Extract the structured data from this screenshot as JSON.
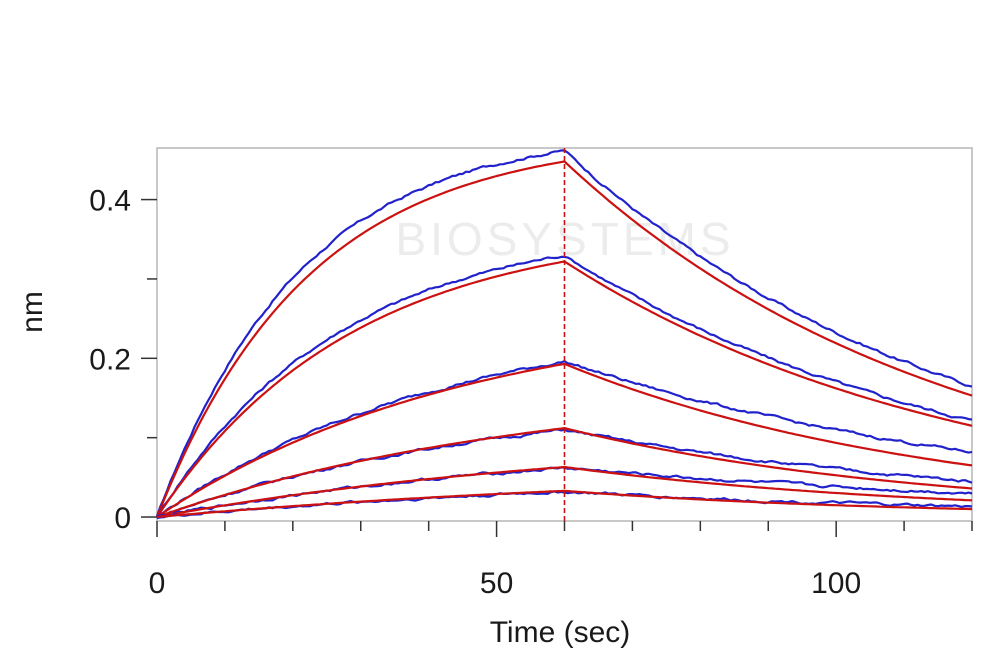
{
  "chart_data": {
    "type": "line",
    "xlabel": "Time (sec)",
    "ylabel": "nm",
    "xlim": [
      0,
      120
    ],
    "ylim": [
      -0.005,
      0.465
    ],
    "x_ticks": [
      0,
      50,
      100
    ],
    "x_tick_labels": [
      "0",
      "50",
      "100"
    ],
    "y_ticks": [
      0,
      0.2,
      0.4
    ],
    "y_tick_labels": [
      "0",
      "0.2",
      "0.4"
    ],
    "x_minor_step": 10,
    "y_minor_step": 0.1,
    "grid": false,
    "dissociation_start": 60,
    "colors": {
      "measured": "#2222cc",
      "fit": "#cc1111",
      "marker_line": "#cc1111",
      "frame": "#b5b5b5",
      "axis": "#333333"
    },
    "watermark": "BIOSYSTEMS",
    "series": [
      {
        "measured": {
          "assoc_end": 0.462,
          "dissoc_end": 0.165
        },
        "fit": {
          "assoc_end": 0.448,
          "dissoc_end": 0.153
        }
      },
      {
        "measured": {
          "assoc_end": 0.33,
          "dissoc_end": 0.122
        },
        "fit": {
          "assoc_end": 0.322,
          "dissoc_end": 0.115
        }
      },
      {
        "measured": {
          "assoc_end": 0.196,
          "dissoc_end": 0.082
        },
        "fit": {
          "assoc_end": 0.193,
          "dissoc_end": 0.065
        }
      },
      {
        "measured": {
          "assoc_end": 0.11,
          "dissoc_end": 0.045
        },
        "fit": {
          "assoc_end": 0.112,
          "dissoc_end": 0.036
        }
      },
      {
        "measured": {
          "assoc_end": 0.062,
          "dissoc_end": 0.03
        },
        "fit": {
          "assoc_end": 0.063,
          "dissoc_end": 0.021
        }
      },
      {
        "measured": {
          "assoc_end": 0.032,
          "dissoc_end": 0.013
        },
        "fit": {
          "assoc_end": 0.033,
          "dissoc_end": 0.01
        }
      }
    ]
  }
}
